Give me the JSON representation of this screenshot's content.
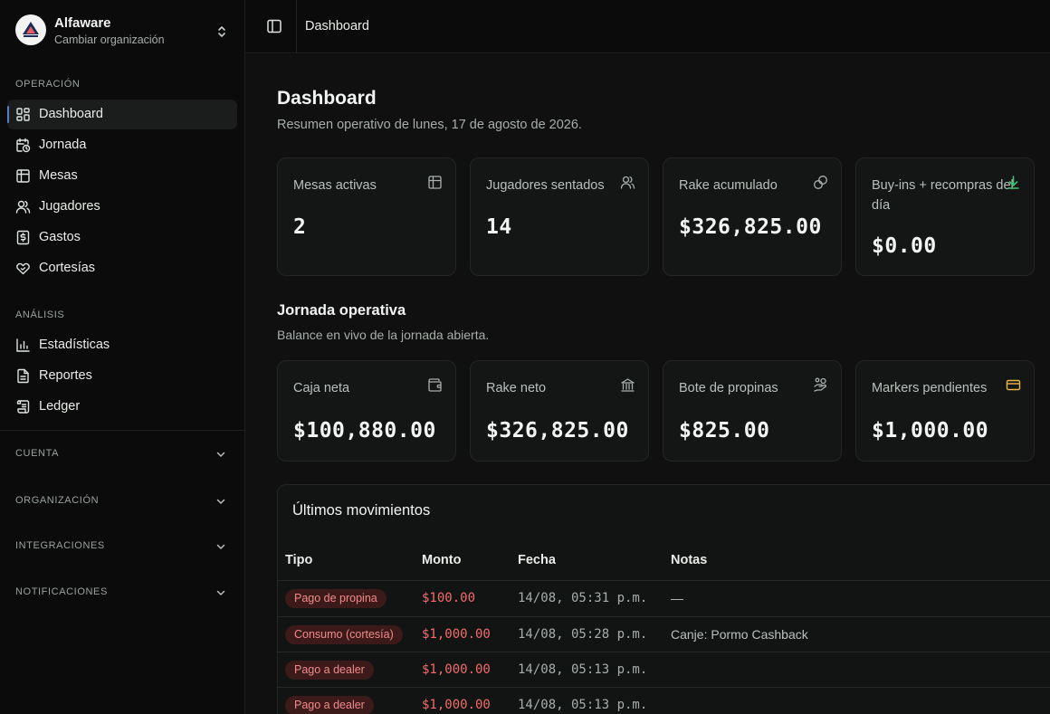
{
  "org": {
    "name": "Alfaware",
    "subtitle": "Cambiar organización",
    "logo_text": "ALFAWARE"
  },
  "sidebar": {
    "sections": [
      {
        "title": "OPERACIÓN",
        "items": [
          {
            "label": "Dashboard",
            "icon": "dashboard-icon",
            "active": true
          },
          {
            "label": "Jornada",
            "icon": "calendar-clock-icon"
          },
          {
            "label": "Mesas",
            "icon": "table-icon"
          },
          {
            "label": "Jugadores",
            "icon": "users-icon"
          },
          {
            "label": "Gastos",
            "icon": "dollar-receipt-icon"
          },
          {
            "label": "Cortesías",
            "icon": "heart-hand-icon"
          }
        ]
      },
      {
        "title": "ANÁLISIS",
        "items": [
          {
            "label": "Estadísticas",
            "icon": "bar-chart-icon"
          },
          {
            "label": "Reportes",
            "icon": "file-icon"
          },
          {
            "label": "Ledger",
            "icon": "scroll-icon"
          }
        ]
      }
    ],
    "collapsibles": [
      "CUENTA",
      "ORGANIZACIÓN",
      "INTEGRACIONES",
      "NOTIFICACIONES"
    ]
  },
  "topbar": {
    "breadcrumb": "Dashboard"
  },
  "page": {
    "title": "Dashboard",
    "subtitle": "Resumen operativo de lunes, 17 de agosto de 2026."
  },
  "summary_cards": [
    {
      "label": "Mesas activas",
      "value": "2",
      "icon": "table-icon"
    },
    {
      "label": "Jugadores sentados",
      "value": "14",
      "icon": "users-icon"
    },
    {
      "label": "Rake acumulado",
      "value": "$326,825.00",
      "icon": "coins-icon"
    },
    {
      "label": "Buy-ins + recompras del día",
      "value": "$0.00",
      "icon": "arrow-down-icon"
    }
  ],
  "jornada": {
    "title": "Jornada operativa",
    "subtitle": "Balance en vivo de la jornada abierta.",
    "cards": [
      {
        "label": "Caja neta",
        "value": "$100,880.00",
        "icon": "wallet-icon"
      },
      {
        "label": "Rake neto",
        "value": "$326,825.00",
        "icon": "bank-icon"
      },
      {
        "label": "Bote de propinas",
        "value": "$825.00",
        "icon": "hand-coins-icon"
      },
      {
        "label": "Markers pendientes",
        "value": "$1,000.00",
        "icon": "credit-card-icon"
      }
    ]
  },
  "movements": {
    "title": "Últimos movimientos",
    "headers": [
      "Tipo",
      "Monto",
      "Fecha",
      "Notas"
    ],
    "rows": [
      {
        "tipo": "Pago de propina",
        "monto": "$100.00",
        "fecha": "14/08, 05:31 p.m.",
        "notas": "—"
      },
      {
        "tipo": "Consumo (cortesía)",
        "monto": "$1,000.00",
        "fecha": "14/08, 05:28 p.m.",
        "notas": "Canje: Pormo Cashback"
      },
      {
        "tipo": "Pago a dealer",
        "monto": "$1,000.00",
        "fecha": "14/08, 05:13 p.m.",
        "notas": ""
      },
      {
        "tipo": "Pago a dealer",
        "monto": "$1,000.00",
        "fecha": "14/08, 05:13 p.m.",
        "notas": ""
      }
    ]
  },
  "colors": {
    "accent_green": "#3fbf6f",
    "accent_yellow": "#e8b54a",
    "negative": "#f26b6b",
    "badge_bg": "#3d1a1a",
    "active_indicator": "#5b7cc8"
  }
}
